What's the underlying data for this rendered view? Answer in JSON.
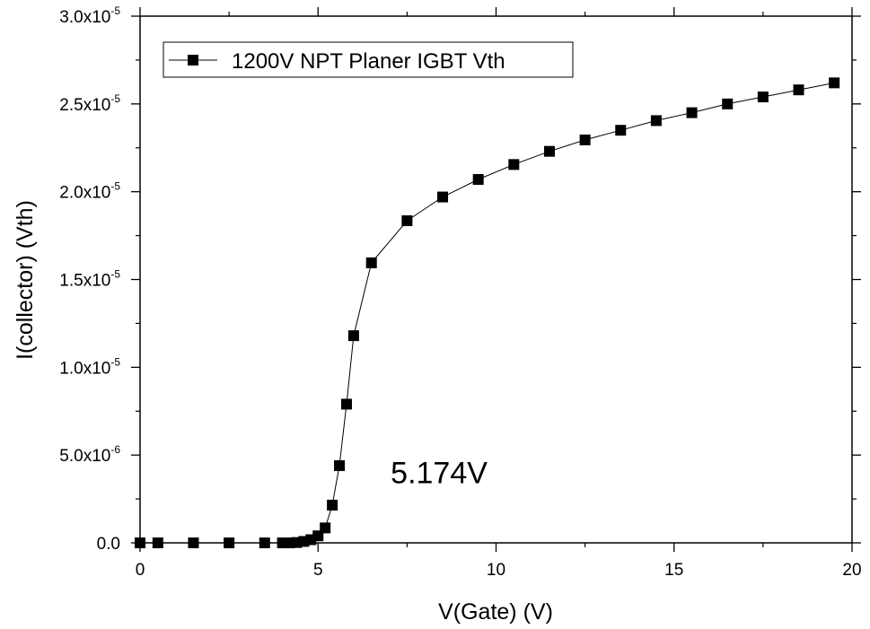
{
  "chart_data": {
    "type": "line",
    "title": "",
    "xlabel": "V(Gate) (V)",
    "ylabel": "I(collector) (Vth)",
    "xlim": [
      0,
      20
    ],
    "ylim": [
      0,
      3e-05
    ],
    "xticks": [
      0,
      5,
      10,
      15,
      20
    ],
    "xtick_labels": [
      "0",
      "5",
      "10",
      "15",
      "20"
    ],
    "yticks": [
      0,
      5e-06,
      1e-05,
      1.5e-05,
      2e-05,
      2.5e-05,
      3e-05
    ],
    "ytick_labels": [
      {
        "mantissa": "0.0",
        "exponent": ""
      },
      {
        "mantissa": "5.0x10",
        "exponent": "-6"
      },
      {
        "mantissa": "1.0x10",
        "exponent": "-5"
      },
      {
        "mantissa": "1.5x10",
        "exponent": "-5"
      },
      {
        "mantissa": "2.0x10",
        "exponent": "-5"
      },
      {
        "mantissa": "2.5x10",
        "exponent": "-5"
      },
      {
        "mantissa": "3.0x10",
        "exponent": "-5"
      }
    ],
    "grid": false,
    "legend_position": "top-left",
    "series": [
      {
        "name": "1200V NPT Planer IGBT Vth",
        "marker": "square",
        "color": "#000000",
        "x": [
          0,
          0.5,
          1.5,
          2.5,
          3.5,
          4.0,
          4.2,
          4.4,
          4.6,
          4.8,
          5.0,
          5.2,
          5.4,
          5.6,
          5.8,
          6.0,
          6.5,
          7.5,
          8.5,
          9.5,
          10.5,
          11.5,
          12.5,
          13.5,
          14.5,
          15.5,
          16.5,
          17.5,
          18.5,
          19.5
        ],
        "y": [
          0,
          0,
          0,
          0,
          0,
          0,
          0,
          2e-08,
          8e-08,
          1.8e-07,
          4e-07,
          8.5e-07,
          2.15e-06,
          4.4e-06,
          7.9e-06,
          1.18e-05,
          1.595e-05,
          1.835e-05,
          1.97e-05,
          2.07e-05,
          2.155e-05,
          2.23e-05,
          2.295e-05,
          2.35e-05,
          2.405e-05,
          2.45e-05,
          2.5e-05,
          2.54e-05,
          2.58e-05,
          2.62e-05
        ]
      }
    ],
    "annotations": [
      {
        "text": "5.174V",
        "x": 8.4,
        "y": 4e-06
      }
    ]
  }
}
